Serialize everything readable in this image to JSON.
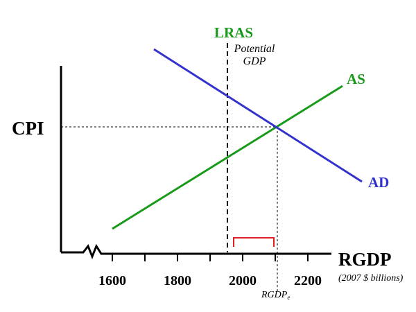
{
  "labels": {
    "y_axis": "CPI",
    "x_axis": "RGDP",
    "x_units": "(2007 $ billions)",
    "lras": "LRAS",
    "potential_line1": "Potential",
    "potential_line2": "GDP",
    "as": "AS",
    "ad": "AD",
    "rgdp_eq_main": "RGDP",
    "rgdp_eq_sub": "e"
  },
  "ticks": [
    "1600",
    "1800",
    "2000",
    "2200"
  ],
  "colors": {
    "axis": "#000000",
    "ad": "#3333cc",
    "as": "#1a9a1a",
    "lras": "#1a9a1a",
    "gap_bracket": "#e02020",
    "guide": "#000000"
  }
}
